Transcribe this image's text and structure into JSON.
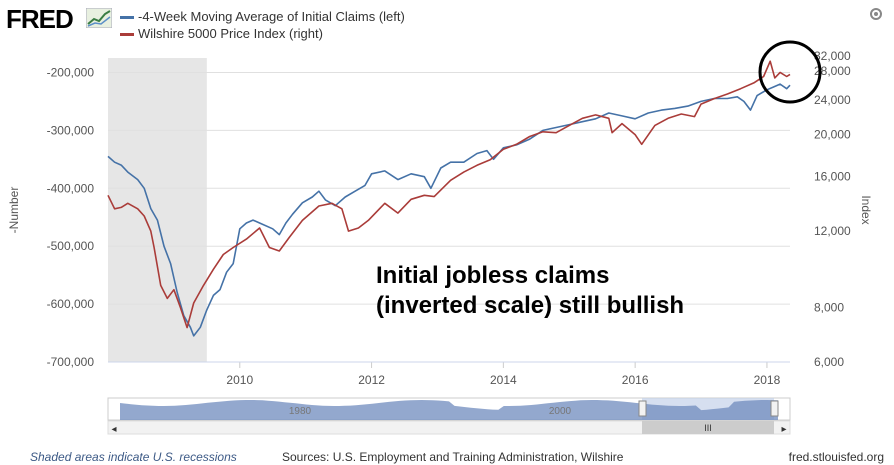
{
  "header": {
    "logo_text": "FRED",
    "logo_icon": "line-graph-icon",
    "settings_icon": "gear-icon"
  },
  "annotation": {
    "line1": "Initial jobless claims",
    "line2": "(inverted scale) still bullish"
  },
  "footer": {
    "note": "Shaded areas indicate U.S. recessions",
    "sources": "Sources: U.S. Employment and Training Administration, Wilshire",
    "url": "fred.stlouisfed.org"
  },
  "navigator": {
    "labels": [
      "1980",
      "2000"
    ],
    "scroll_label": "III",
    "left_arrow": "◂",
    "right_arrow": "▸"
  },
  "chart_data": {
    "type": "line",
    "title": "",
    "x_ticks": [
      "2010",
      "2012",
      "2014",
      "2016",
      "2018"
    ],
    "x_range": [
      2008.0,
      2018.35
    ],
    "left_axis": {
      "label": "-Number",
      "range": [
        -700000,
        -175000
      ],
      "ticks": [
        -200000,
        -300000,
        -400000,
        -500000,
        -600000,
        -700000
      ],
      "tick_labels": [
        "-200,000",
        "-300,000",
        "-400,000",
        "-500,000",
        "-600,000",
        "-700,000"
      ]
    },
    "right_axis": {
      "label": "Index",
      "scale": "log",
      "range": [
        6000,
        30000
      ],
      "ticks": [
        6000,
        8000,
        12000,
        16000,
        20000,
        24000,
        28000,
        32000
      ],
      "tick_labels": [
        "6,000",
        "8,000",
        "12,000",
        "16,000",
        "20,000",
        "24,000",
        "28,000",
        "32,000"
      ]
    },
    "recession": {
      "start": 2008.0,
      "end": 2009.5
    },
    "grid": true,
    "legend_position": "top-left",
    "series": [
      {
        "name": "-4-Week Moving Average of Initial Claims (left)",
        "axis": "left",
        "color": "#4572a7",
        "points": [
          [
            2008.0,
            -345000
          ],
          [
            2008.1,
            -355000
          ],
          [
            2008.2,
            -360000
          ],
          [
            2008.3,
            -372000
          ],
          [
            2008.45,
            -385000
          ],
          [
            2008.55,
            -400000
          ],
          [
            2008.65,
            -435000
          ],
          [
            2008.75,
            -455000
          ],
          [
            2008.85,
            -500000
          ],
          [
            2008.95,
            -530000
          ],
          [
            2009.05,
            -580000
          ],
          [
            2009.15,
            -620000
          ],
          [
            2009.25,
            -640000
          ],
          [
            2009.3,
            -655000
          ],
          [
            2009.4,
            -640000
          ],
          [
            2009.5,
            -610000
          ],
          [
            2009.6,
            -585000
          ],
          [
            2009.7,
            -575000
          ],
          [
            2009.8,
            -545000
          ],
          [
            2009.9,
            -530000
          ],
          [
            2010.0,
            -470000
          ],
          [
            2010.1,
            -460000
          ],
          [
            2010.2,
            -455000
          ],
          [
            2010.3,
            -460000
          ],
          [
            2010.5,
            -470000
          ],
          [
            2010.6,
            -480000
          ],
          [
            2010.7,
            -460000
          ],
          [
            2010.8,
            -445000
          ],
          [
            2010.95,
            -425000
          ],
          [
            2011.1,
            -415000
          ],
          [
            2011.2,
            -405000
          ],
          [
            2011.3,
            -420000
          ],
          [
            2011.45,
            -430000
          ],
          [
            2011.6,
            -415000
          ],
          [
            2011.75,
            -405000
          ],
          [
            2011.9,
            -395000
          ],
          [
            2012.0,
            -375000
          ],
          [
            2012.2,
            -370000
          ],
          [
            2012.4,
            -385000
          ],
          [
            2012.6,
            -375000
          ],
          [
            2012.8,
            -380000
          ],
          [
            2012.9,
            -400000
          ],
          [
            2013.05,
            -365000
          ],
          [
            2013.2,
            -355000
          ],
          [
            2013.4,
            -355000
          ],
          [
            2013.6,
            -340000
          ],
          [
            2013.75,
            -335000
          ],
          [
            2013.85,
            -350000
          ],
          [
            2014.0,
            -330000
          ],
          [
            2014.2,
            -325000
          ],
          [
            2014.4,
            -315000
          ],
          [
            2014.6,
            -300000
          ],
          [
            2014.8,
            -295000
          ],
          [
            2015.0,
            -290000
          ],
          [
            2015.2,
            -285000
          ],
          [
            2015.4,
            -280000
          ],
          [
            2015.6,
            -270000
          ],
          [
            2015.8,
            -275000
          ],
          [
            2016.0,
            -280000
          ],
          [
            2016.2,
            -270000
          ],
          [
            2016.4,
            -265000
          ],
          [
            2016.6,
            -262000
          ],
          [
            2016.8,
            -258000
          ],
          [
            2017.0,
            -250000
          ],
          [
            2017.2,
            -245000
          ],
          [
            2017.4,
            -245000
          ],
          [
            2017.55,
            -242000
          ],
          [
            2017.65,
            -250000
          ],
          [
            2017.75,
            -265000
          ],
          [
            2017.85,
            -240000
          ],
          [
            2018.0,
            -230000
          ],
          [
            2018.1,
            -225000
          ],
          [
            2018.2,
            -220000
          ],
          [
            2018.3,
            -228000
          ],
          [
            2018.35,
            -222000
          ]
        ]
      },
      {
        "name": "Wilshire 5000 Price Index (right)",
        "axis": "right",
        "color": "#aa3c39",
        "points": [
          [
            2008.0,
            14500
          ],
          [
            2008.1,
            13500
          ],
          [
            2008.2,
            13600
          ],
          [
            2008.3,
            13900
          ],
          [
            2008.45,
            13500
          ],
          [
            2008.55,
            13000
          ],
          [
            2008.65,
            12000
          ],
          [
            2008.7,
            11000
          ],
          [
            2008.8,
            9000
          ],
          [
            2008.9,
            8400
          ],
          [
            2009.0,
            8800
          ],
          [
            2009.1,
            8000
          ],
          [
            2009.2,
            7200
          ],
          [
            2009.3,
            8200
          ],
          [
            2009.45,
            9000
          ],
          [
            2009.6,
            9800
          ],
          [
            2009.75,
            10600
          ],
          [
            2009.9,
            11000
          ],
          [
            2010.1,
            11500
          ],
          [
            2010.3,
            12200
          ],
          [
            2010.45,
            11000
          ],
          [
            2010.6,
            10800
          ],
          [
            2010.75,
            11600
          ],
          [
            2010.95,
            12700
          ],
          [
            2011.2,
            13700
          ],
          [
            2011.4,
            13900
          ],
          [
            2011.55,
            13500
          ],
          [
            2011.65,
            12000
          ],
          [
            2011.8,
            12200
          ],
          [
            2011.95,
            12700
          ],
          [
            2012.2,
            13900
          ],
          [
            2012.4,
            13200
          ],
          [
            2012.6,
            14200
          ],
          [
            2012.8,
            14500
          ],
          [
            2012.95,
            14400
          ],
          [
            2013.2,
            15700
          ],
          [
            2013.4,
            16400
          ],
          [
            2013.6,
            17000
          ],
          [
            2013.8,
            17500
          ],
          [
            2014.0,
            18500
          ],
          [
            2014.2,
            19000
          ],
          [
            2014.4,
            19800
          ],
          [
            2014.6,
            20300
          ],
          [
            2014.8,
            20200
          ],
          [
            2015.0,
            21000
          ],
          [
            2015.2,
            21800
          ],
          [
            2015.4,
            22200
          ],
          [
            2015.6,
            21800
          ],
          [
            2015.65,
            20200
          ],
          [
            2015.8,
            21200
          ],
          [
            2016.0,
            20000
          ],
          [
            2016.1,
            19000
          ],
          [
            2016.3,
            21000
          ],
          [
            2016.5,
            21800
          ],
          [
            2016.7,
            22300
          ],
          [
            2016.9,
            22000
          ],
          [
            2017.0,
            23500
          ],
          [
            2017.2,
            24200
          ],
          [
            2017.4,
            24800
          ],
          [
            2017.6,
            25500
          ],
          [
            2017.8,
            26300
          ],
          [
            2017.95,
            27200
          ],
          [
            2018.05,
            29500
          ],
          [
            2018.12,
            27000
          ],
          [
            2018.2,
            27800
          ],
          [
            2018.3,
            27200
          ],
          [
            2018.35,
            27500
          ]
        ]
      }
    ]
  }
}
